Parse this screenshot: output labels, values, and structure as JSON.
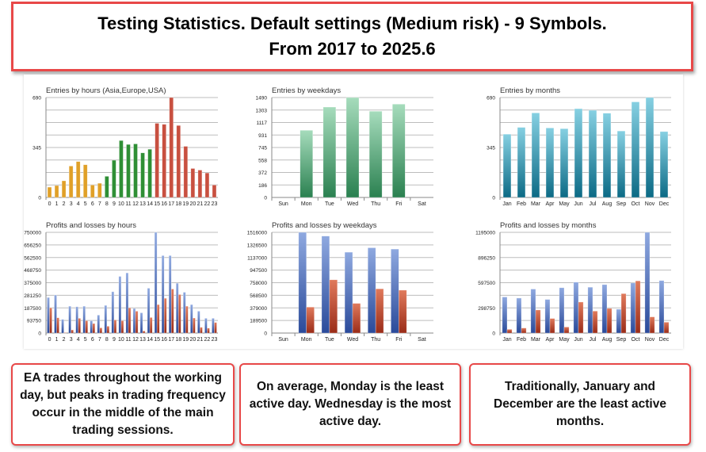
{
  "header": {
    "line1": "Testing Statistics. Default settings (Medium risk) - 9 Symbols.",
    "line2": "From 2017 to 2025.6"
  },
  "notes": [
    "EA trades throughout the working day, but peaks in trading frequency occur in the middle of the main trading sessions.",
    "On average, Monday is the least active day. Wednesday is the most active day.",
    "Traditionally, January and December are the least active months."
  ],
  "colors": {
    "accent_border": "#e84848",
    "profit_blue": "#3f66b8",
    "loss_red": "#c0432a",
    "asia_orange": "#e0a028",
    "europe_green": "#2f8f35",
    "usa_red": "#c85040",
    "weekday_green": "#3a9a66",
    "month_teal": "#1a86a0"
  },
  "chart_data": [
    {
      "type": "bar",
      "title": "Entries by hours (Asia,Europe,USA)",
      "categories": [
        "0",
        "1",
        "2",
        "3",
        "4",
        "5",
        "6",
        "7",
        "8",
        "9",
        "10",
        "11",
        "12",
        "13",
        "14",
        "15",
        "16",
        "17",
        "18",
        "19",
        "20",
        "21",
        "22",
        "23"
      ],
      "ylim": [
        0,
        690
      ],
      "yticks": [
        "0",
        "345",
        "690"
      ],
      "grid": true,
      "series": [
        {
          "values": [
            71,
            82,
            115,
            217,
            248,
            226,
            86,
            98,
            146,
            257,
            393,
            366,
            370,
            308,
            333,
            512,
            505,
            690,
            497,
            353,
            200,
            189,
            169,
            86
          ],
          "bar_colors": [
            "#e0a028",
            "#e0a028",
            "#e0a028",
            "#e0a028",
            "#e0a028",
            "#e0a028",
            "#e0a028",
            "#e0a028",
            "#2f8f35",
            "#2f8f35",
            "#2f8f35",
            "#2f8f35",
            "#2f8f35",
            "#2f8f35",
            "#2f8f35",
            "#c85040",
            "#c85040",
            "#c85040",
            "#c85040",
            "#c85040",
            "#c85040",
            "#c85040",
            "#c85040",
            "#c85040"
          ]
        }
      ]
    },
    {
      "type": "bar",
      "title": "Profits and losses by hours",
      "categories": [
        "0",
        "1",
        "2",
        "3",
        "4",
        "5",
        "6",
        "7",
        "8",
        "9",
        "10",
        "11",
        "12",
        "13",
        "14",
        "15",
        "16",
        "17",
        "18",
        "19",
        "20",
        "21",
        "22",
        "23"
      ],
      "ylim": [
        0,
        750000
      ],
      "yticks": [
        "0",
        "93750",
        "187500",
        "281250",
        "375000",
        "468750",
        "562500",
        "656250",
        "750000"
      ],
      "grid": true,
      "series": [
        {
          "values": [
            265000,
            283000,
            102000,
            200000,
            196000,
            200000,
            92000,
            134000,
            206000,
            308000,
            422000,
            448000,
            183000,
            151000,
            334000,
            750000,
            577000,
            577000,
            371000,
            304000,
            212000,
            163000,
            110000,
            110000
          ],
          "color": "#3f66b8"
        },
        {
          "values": [
            188000,
            114000,
            4000,
            24000,
            110000,
            92000,
            71000,
            39000,
            51000,
            98000,
            92000,
            188000,
            163000,
            16000,
            116000,
            212000,
            259000,
            328000,
            287000,
            200000,
            112000,
            43000,
            37000,
            79000
          ],
          "color": "#c0432a"
        }
      ]
    },
    {
      "type": "bar",
      "title": "Entries by weekdays",
      "categories": [
        "Sun",
        "Mon",
        "Tue",
        "Wed",
        "Thu",
        "Fri",
        "Sat"
      ],
      "ylim": [
        0,
        1490
      ],
      "yticks": [
        "0",
        "186",
        "372",
        "558",
        "745",
        "931",
        "1117",
        "1303",
        "1490"
      ],
      "grid": true,
      "series": [
        {
          "values": [
            0,
            1002,
            1348,
            1490,
            1286,
            1392,
            0
          ],
          "color": "#3a9a66"
        }
      ]
    },
    {
      "type": "bar",
      "title": "Profits and losses by weekdays",
      "categories": [
        "Sun",
        "Mon",
        "Tue",
        "Wed",
        "Thu",
        "Fri",
        "Sat"
      ],
      "ylim": [
        0,
        1516000
      ],
      "yticks": [
        "0",
        "189500",
        "379000",
        "568500",
        "758000",
        "947500",
        "1137000",
        "1326500",
        "1516000"
      ],
      "grid": true,
      "series": [
        {
          "values": [
            0,
            1516000,
            1460000,
            1217000,
            1284000,
            1264000,
            0
          ],
          "color": "#3f66b8"
        },
        {
          "values": [
            0,
            391000,
            802000,
            447000,
            666000,
            646000,
            0
          ],
          "color": "#c0432a"
        }
      ]
    },
    {
      "type": "bar",
      "title": "Entries by months",
      "categories": [
        "Jan",
        "Feb",
        "Mar",
        "Apr",
        "May",
        "Jun",
        "Jul",
        "Aug",
        "Sep",
        "Oct",
        "Nov",
        "Dec"
      ],
      "ylim": [
        0,
        690
      ],
      "yticks": [
        "0",
        "345",
        "690"
      ],
      "grid": true,
      "series": [
        {
          "values": [
            437,
            484,
            584,
            480,
            475,
            613,
            602,
            582,
            459,
            660,
            690,
            455
          ],
          "color": "#1a86a0"
        }
      ]
    },
    {
      "type": "bar",
      "title": "Profits and losses by months",
      "categories": [
        "Jan",
        "Feb",
        "Mar",
        "Apr",
        "May",
        "Jun",
        "Jul",
        "Aug",
        "Sep",
        "Oct",
        "Nov",
        "Dec"
      ],
      "ylim": [
        0,
        1195000
      ],
      "yticks": [
        "0",
        "298750",
        "597500",
        "896250",
        "1195000"
      ],
      "grid": true,
      "series": [
        {
          "values": [
            428000,
            415000,
            522000,
            399000,
            538000,
            604000,
            544000,
            575000,
            283000,
            594000,
            1195000,
            623000
          ],
          "color": "#3f66b8"
        },
        {
          "values": [
            44000,
            60000,
            274000,
            173000,
            72000,
            368000,
            261000,
            292000,
            468000,
            619000,
            192000,
            129000
          ],
          "color": "#c0432a"
        }
      ]
    }
  ]
}
